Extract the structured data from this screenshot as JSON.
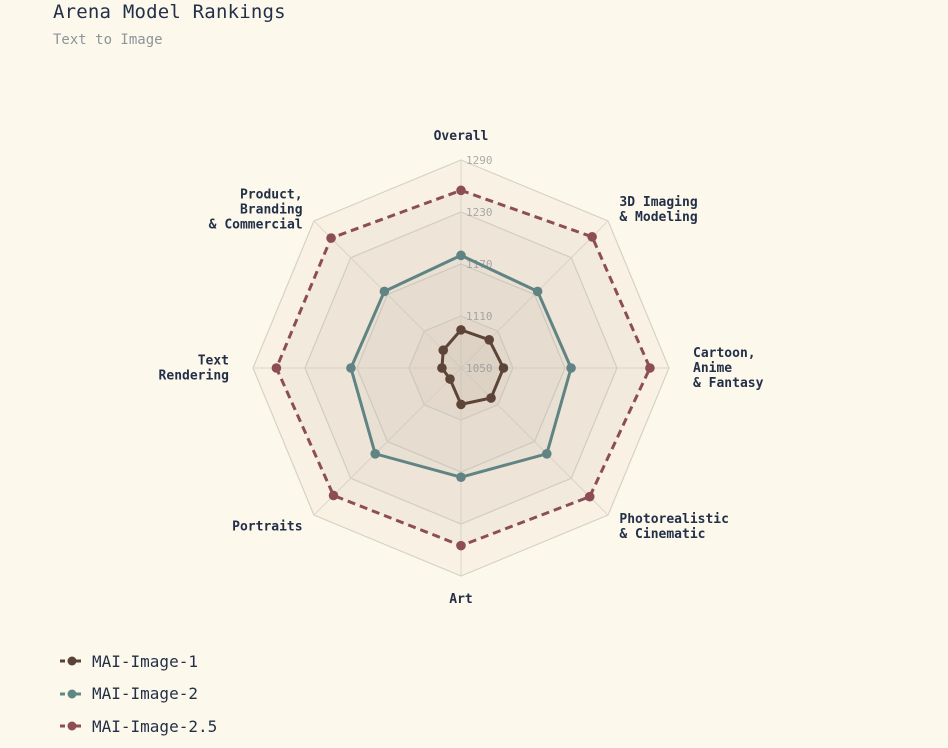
{
  "title": "Arena Model Rankings",
  "subtitle": "Text to Image",
  "chart_data": {
    "type": "radar",
    "axes": [
      "Overall",
      "3D Imaging\n& Modeling",
      "Cartoon,\nAnime\n& Fantasy",
      "Photorealistic\n& Cinematic",
      "Art",
      "Portraits",
      "Text\nRendering",
      "Product,\nBranding\n& Commercial"
    ],
    "r_ticks": [
      1050,
      1110,
      1170,
      1230,
      1290
    ],
    "r_range": [
      1050,
      1290
    ],
    "series": [
      {
        "name": "MAI-Image-1",
        "color": "#5b4237",
        "dash": false,
        "values": [
          1094,
          1096,
          1099,
          1099,
          1092,
          1068,
          1072,
          1079
        ]
      },
      {
        "name": "MAI-Image-2",
        "color": "#5f8786",
        "dash": false,
        "values": [
          1180,
          1175,
          1177,
          1190,
          1176,
          1190,
          1177,
          1175
        ]
      },
      {
        "name": "MAI-Image-2.5",
        "color": "#8c4d57",
        "dash": true,
        "values": [
          1255,
          1264,
          1268,
          1260,
          1255,
          1258,
          1263,
          1262
        ]
      }
    ],
    "legend_position": "bottom-left",
    "grid": true
  }
}
